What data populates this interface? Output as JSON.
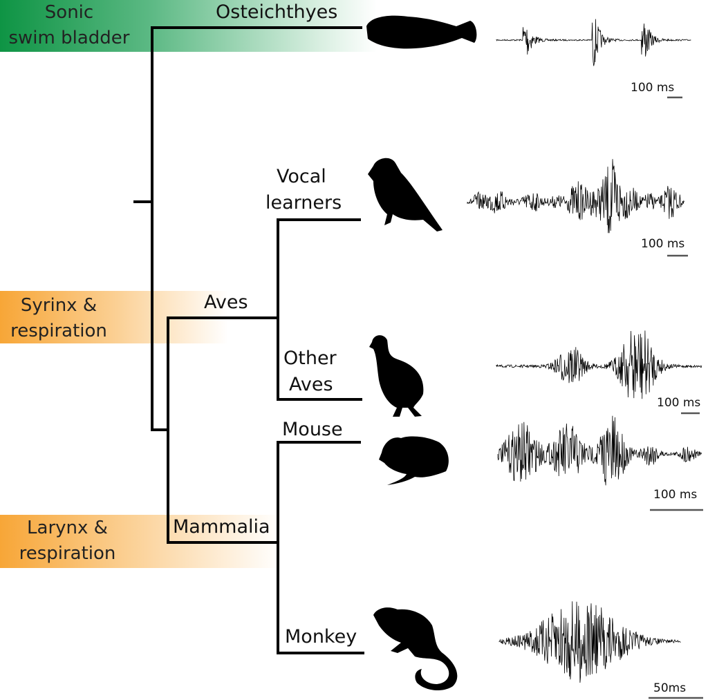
{
  "traits": [
    {
      "label_line1": "Sonic",
      "label_line2": "swim bladder",
      "color": "#0e9444"
    },
    {
      "label_line1": "Syrinx &",
      "label_line2": "respiration",
      "color": "#f7a637"
    },
    {
      "label_line1": "Larynx &",
      "label_line2": "respiration",
      "color": "#f7a637"
    }
  ],
  "clades": {
    "osteichthyes": "Osteichthyes",
    "vocal_learners_1": "Vocal",
    "vocal_learners_2": "learners",
    "aves": "Aves",
    "other_aves_1": "Other",
    "other_aves_2": "Aves",
    "mouse": "Mouse",
    "mammalia": "Mammalia",
    "monkey": "Monkey"
  },
  "silhouettes": [
    "fish-silhouette",
    "songbird-silhouette",
    "quail-silhouette",
    "mouse-silhouette",
    "marmoset-silhouette"
  ],
  "scale_bars": {
    "fish": "100 ms",
    "songbird": "100 ms",
    "quail": "100 ms",
    "mouse": "100 ms",
    "monkey": "50ms"
  },
  "line_color": "#000000"
}
